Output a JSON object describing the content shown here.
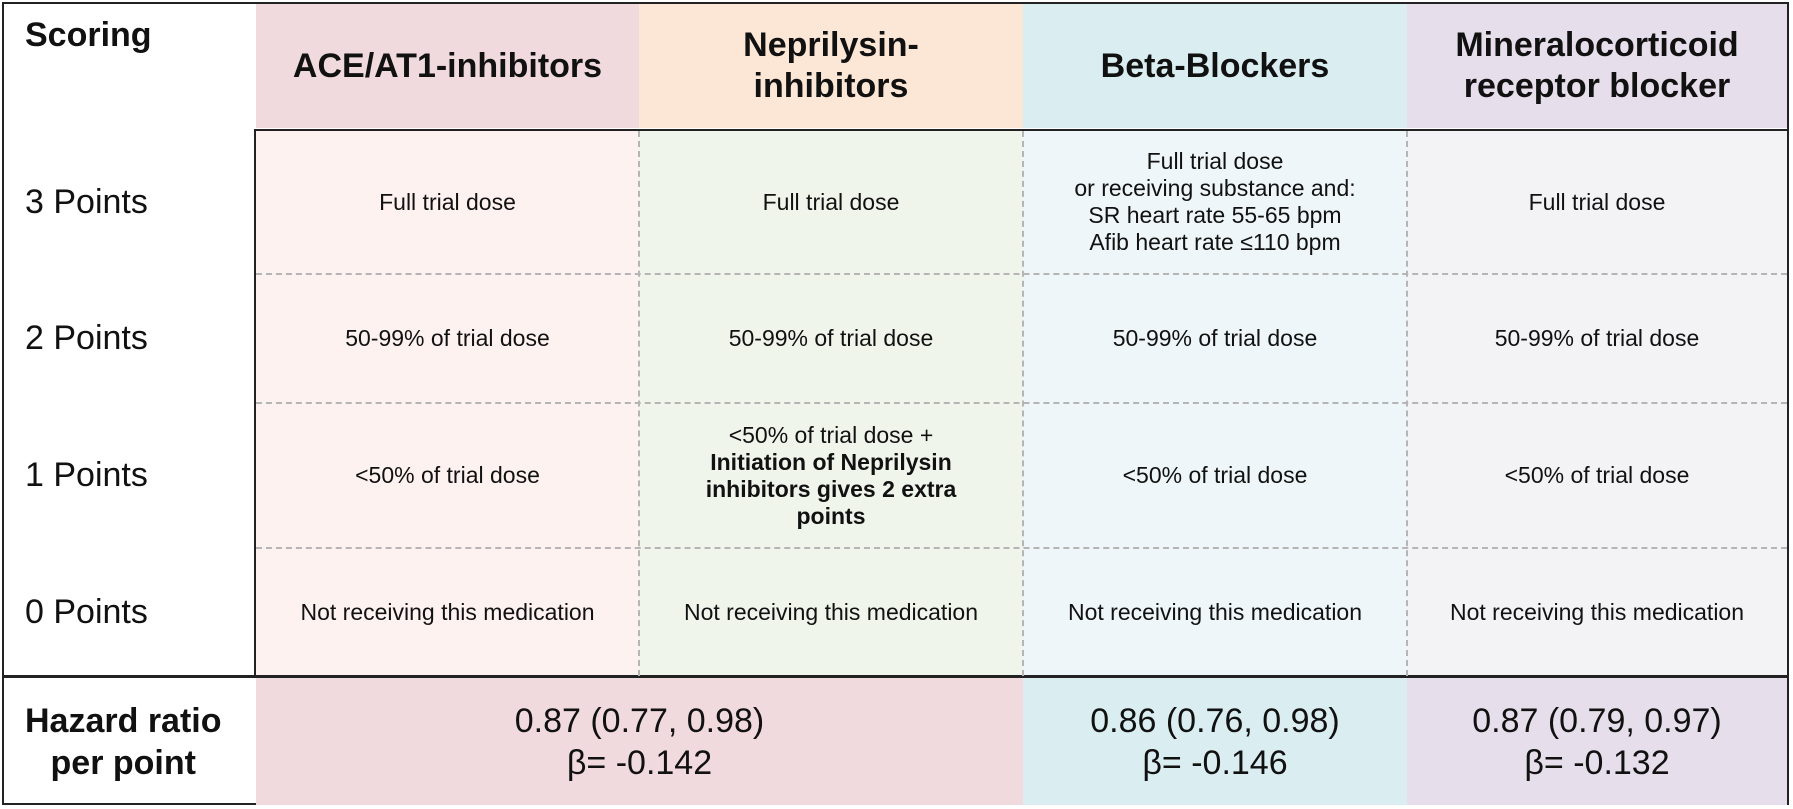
{
  "corner_label": "Scoring",
  "columns": [
    {
      "label": "ACE/AT1-inhibitors",
      "header_color": "#f1dadd",
      "body_color": "#fdf2f0"
    },
    {
      "label": "Neprilysin-\ninhibitors",
      "header_color": "#fce6d6",
      "body_color": "#f0f5ec"
    },
    {
      "label": "Beta-Blockers",
      "header_color": "#daeef2",
      "body_color": "#eef6f9"
    },
    {
      "label": "Mineralocorticoid\nreceptor blocker",
      "header_color": "#e6deea",
      "body_color": "#f3f3f6"
    }
  ],
  "rows": [
    {
      "label": "3 Points",
      "cells": [
        "Full trial dose",
        "Full trial dose",
        "Full trial dose\nor receiving substance and:\nSR heart rate 55-65 bpm\nAfib heart rate ≤110 bpm",
        "Full trial dose"
      ]
    },
    {
      "label": "2 Points",
      "cells": [
        "50-99% of trial dose",
        "50-99% of trial dose",
        "50-99% of trial dose",
        "50-99% of trial dose"
      ]
    },
    {
      "label": "1 Points",
      "cells": [
        "<50% of trial dose",
        "<50% of trial dose +",
        "<50% of trial dose",
        "<50% of trial dose"
      ],
      "neprilysin_bold_note": "Initiation of Neprilysin\ninhibitors gives 2 extra\npoints"
    },
    {
      "label": "0 Points",
      "cells": [
        "Not receiving this medication",
        "Not receiving this medication",
        "Not receiving this medication",
        "Not receiving this medication"
      ]
    }
  ],
  "hazard": {
    "label": "Hazard ratio\nper point",
    "groups": [
      {
        "ratio": "0.87 (0.77, 0.98)",
        "beta": "β= -0.142",
        "color": "#f1dadd"
      },
      {
        "ratio": "0.86 (0.76, 0.98)",
        "beta": "β= -0.146",
        "color": "#daeef2"
      },
      {
        "ratio": "0.87 (0.79, 0.97)",
        "beta": "β= -0.132",
        "color": "#e6deea"
      }
    ]
  },
  "colors": {
    "border": "#222222",
    "dashed": "#b5b5b5"
  }
}
